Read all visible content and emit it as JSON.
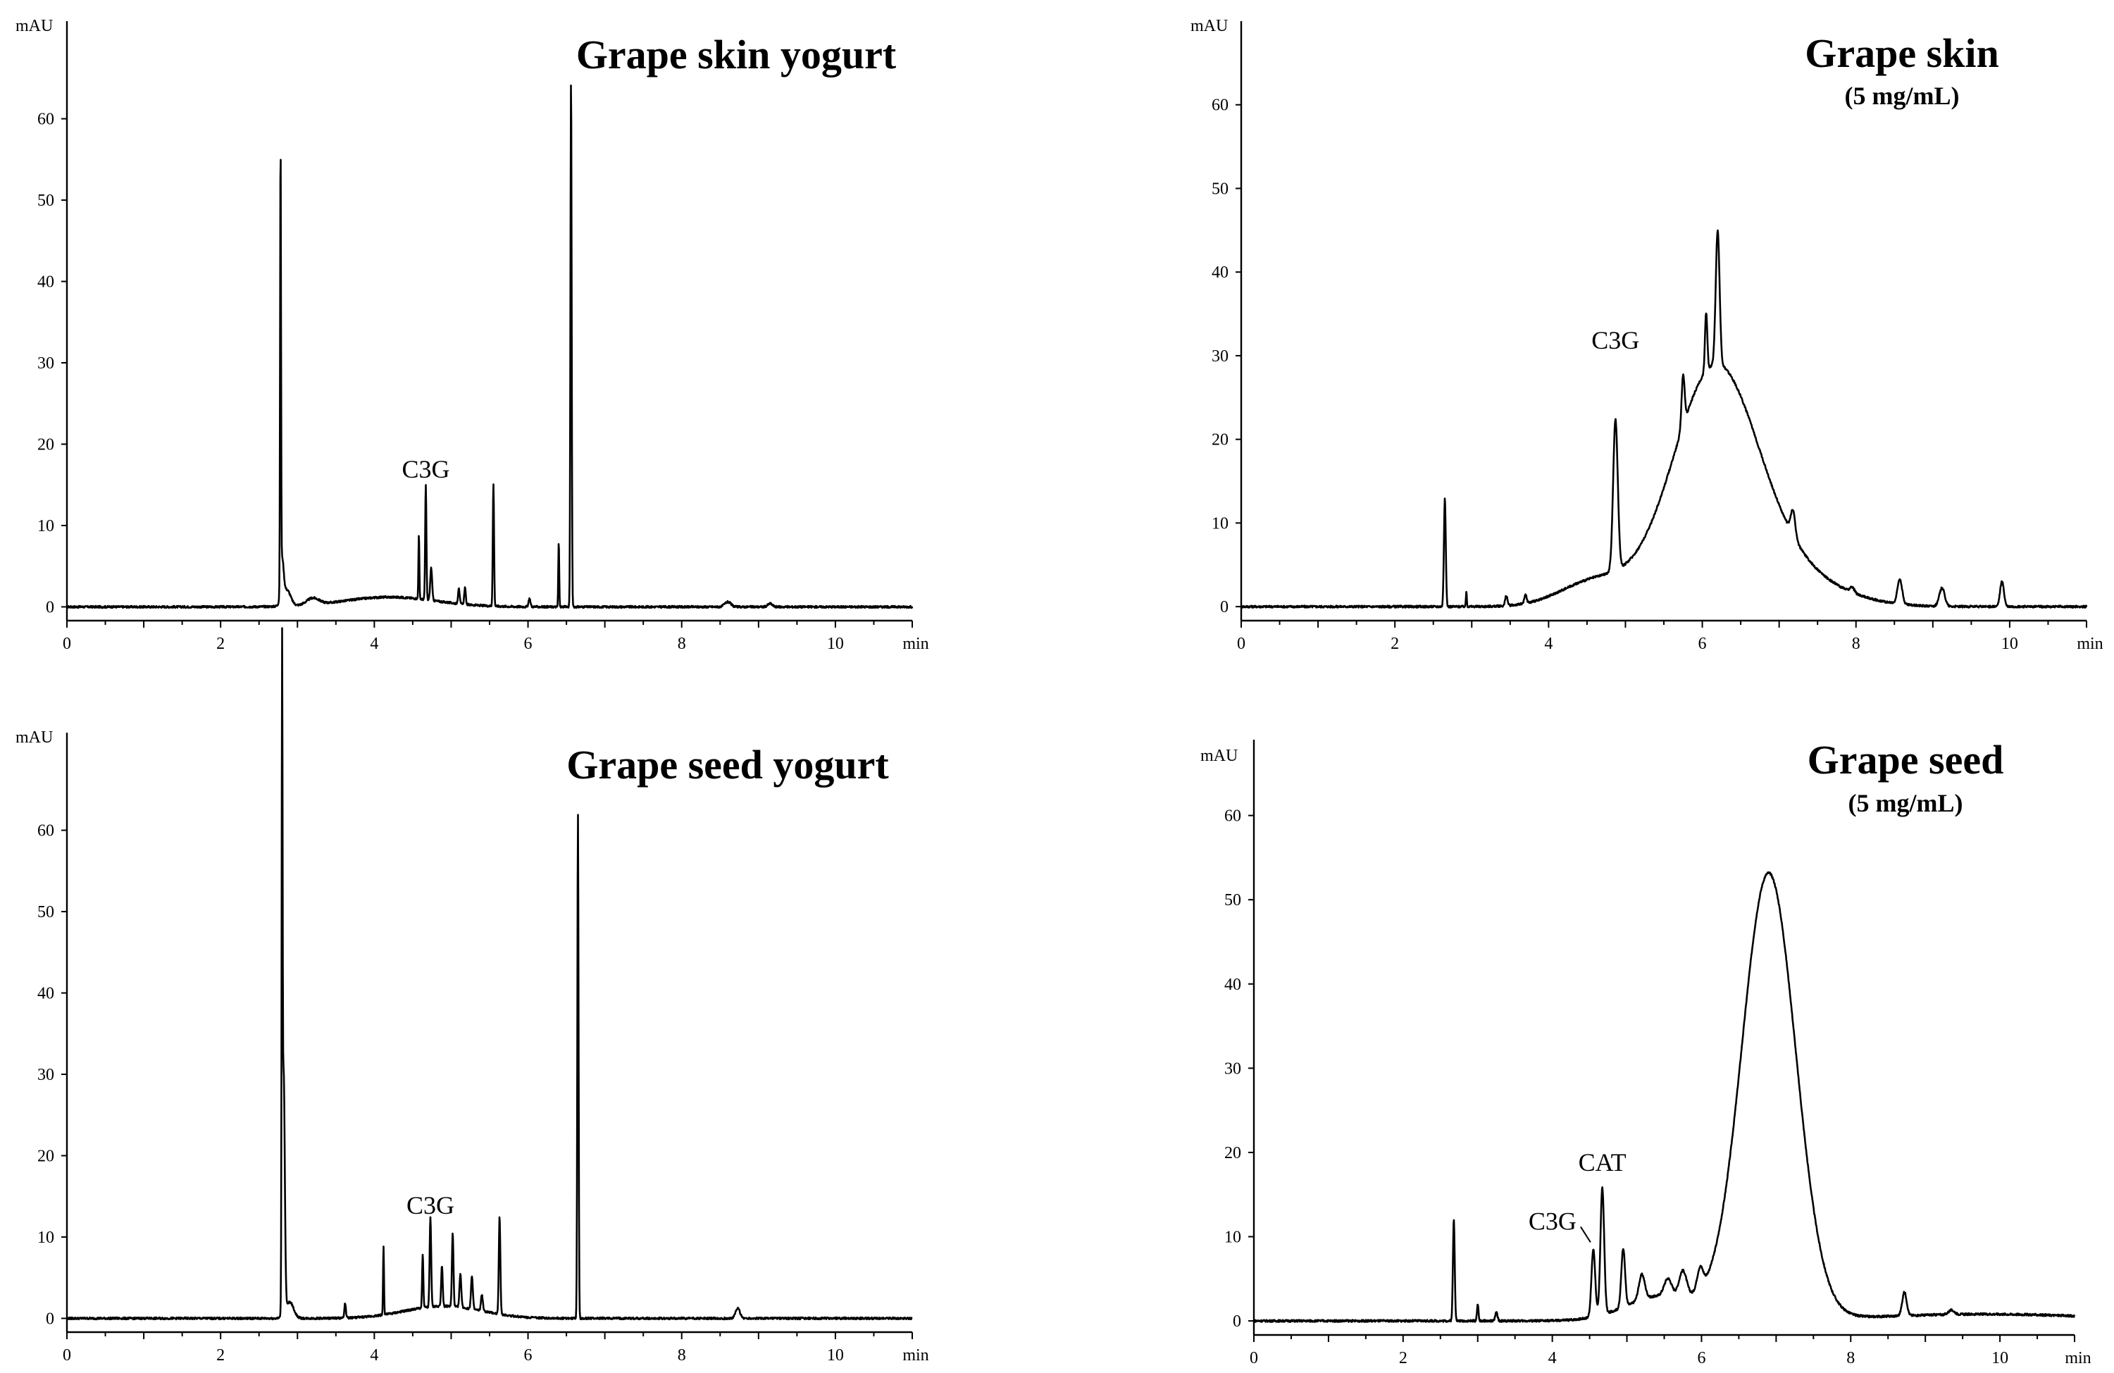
{
  "chart_data": [
    {
      "type": "line",
      "title": "Grape skin yogurt",
      "subtitle": "",
      "xunit": "min",
      "yunit": "mAU",
      "xlim": [
        0,
        11
      ],
      "ylim": [
        -1,
        72
      ],
      "xticks": [
        0,
        2,
        4,
        6,
        8,
        10
      ],
      "yticks": [
        0,
        10,
        20,
        30,
        40,
        50,
        60
      ],
      "baseline": 0,
      "peaks": [
        {
          "x": 2.78,
          "h": 54,
          "w": 0.006
        },
        {
          "x": 2.8,
          "h": 5,
          "w": 0.02
        },
        {
          "x": 2.86,
          "h": 2,
          "w": 0.05
        },
        {
          "x": 3.2,
          "h": 0.8,
          "w": 0.08
        },
        {
          "x": 4.58,
          "h": 8,
          "w": 0.006
        },
        {
          "x": 4.67,
          "h": 14,
          "w": 0.008
        },
        {
          "x": 4.74,
          "h": 4,
          "w": 0.012
        },
        {
          "x": 5.1,
          "h": 2,
          "w": 0.01
        },
        {
          "x": 5.18,
          "h": 2,
          "w": 0.01
        },
        {
          "x": 5.55,
          "h": 15,
          "w": 0.008
        },
        {
          "x": 6.02,
          "h": 1,
          "w": 0.012
        },
        {
          "x": 6.4,
          "h": 8,
          "w": 0.006
        },
        {
          "x": 6.56,
          "h": 65,
          "w": 0.008
        },
        {
          "x": 8.6,
          "h": 0.6,
          "w": 0.04
        },
        {
          "x": 9.15,
          "h": 0.4,
          "w": 0.03
        }
      ],
      "humps": [
        {
          "x": 4.2,
          "h": 1.2,
          "w": 0.6
        }
      ],
      "annotations": [
        {
          "text": "C3G",
          "x": 4.67,
          "y": 15
        }
      ]
    },
    {
      "type": "line",
      "title": "Grape skin",
      "subtitle": "(5 mg/mL)",
      "xunit": "min",
      "yunit": "mAU",
      "xlim": [
        0,
        11
      ],
      "ylim": [
        -1,
        70
      ],
      "xticks": [
        0,
        2,
        4,
        6,
        8,
        10
      ],
      "yticks": [
        0,
        10,
        20,
        30,
        40,
        50,
        60
      ],
      "baseline": 0,
      "peaks": [
        {
          "x": 2.65,
          "h": 13,
          "w": 0.012
        },
        {
          "x": 2.93,
          "h": 1.8,
          "w": 0.006
        },
        {
          "x": 3.45,
          "h": 1.2,
          "w": 0.015
        },
        {
          "x": 3.7,
          "h": 1,
          "w": 0.015
        },
        {
          "x": 4.87,
          "h": 18,
          "w": 0.03
        },
        {
          "x": 5.75,
          "h": 6,
          "w": 0.02
        },
        {
          "x": 6.05,
          "h": 7,
          "w": 0.015
        },
        {
          "x": 6.2,
          "h": 16,
          "w": 0.025
        },
        {
          "x": 7.18,
          "h": 3,
          "w": 0.03
        },
        {
          "x": 7.95,
          "h": 0.6,
          "w": 0.03
        },
        {
          "x": 8.57,
          "h": 3,
          "w": 0.03
        },
        {
          "x": 9.12,
          "h": 2.2,
          "w": 0.035
        },
        {
          "x": 9.9,
          "h": 3,
          "w": 0.025
        }
      ],
      "humps": [
        {
          "x": 6.15,
          "h": 27,
          "w": 0.55
        },
        {
          "x": 4.6,
          "h": 3,
          "w": 0.45
        },
        {
          "x": 7.0,
          "h": 4,
          "w": 0.7
        }
      ],
      "annotations": [
        {
          "text": "C3G",
          "x": 4.87,
          "y": 30
        }
      ]
    },
    {
      "type": "line",
      "title": "Grape seed yogurt",
      "subtitle": "",
      "xunit": "min",
      "yunit": "mAU",
      "xlim": [
        0,
        11
      ],
      "ylim": [
        -1,
        72
      ],
      "xticks": [
        0,
        2,
        4,
        6,
        8,
        10
      ],
      "yticks": [
        0,
        10,
        20,
        30,
        40,
        50,
        60
      ],
      "baseline": 0,
      "peaks": [
        {
          "x": 2.8,
          "h": 72,
          "w": 0.006
        },
        {
          "x": 2.82,
          "h": 30,
          "w": 0.015
        },
        {
          "x": 2.9,
          "h": 2,
          "w": 0.05
        },
        {
          "x": 3.62,
          "h": 1.8,
          "w": 0.01
        },
        {
          "x": 4.12,
          "h": 8.5,
          "w": 0.006
        },
        {
          "x": 4.63,
          "h": 6.5,
          "w": 0.008
        },
        {
          "x": 4.73,
          "h": 11,
          "w": 0.01
        },
        {
          "x": 4.88,
          "h": 5,
          "w": 0.01
        },
        {
          "x": 5.02,
          "h": 9,
          "w": 0.01
        },
        {
          "x": 5.12,
          "h": 4,
          "w": 0.012
        },
        {
          "x": 5.27,
          "h": 4,
          "w": 0.012
        },
        {
          "x": 5.4,
          "h": 2,
          "w": 0.012
        },
        {
          "x": 5.63,
          "h": 12,
          "w": 0.01
        },
        {
          "x": 6.65,
          "h": 62,
          "w": 0.008
        },
        {
          "x": 8.73,
          "h": 1.2,
          "w": 0.03
        }
      ],
      "humps": [
        {
          "x": 4.9,
          "h": 1.5,
          "w": 0.5
        }
      ],
      "annotations": [
        {
          "text": "C3G",
          "x": 4.73,
          "y": 12
        }
      ]
    },
    {
      "type": "line",
      "title": "Grape seed",
      "subtitle": "(5 mg/mL)",
      "xunit": "min",
      "yunit": "mAU",
      "xlim": [
        0,
        11
      ],
      "ylim": [
        -1,
        69
      ],
      "xticks": [
        0,
        2,
        4,
        6,
        8,
        10
      ],
      "yticks": [
        0,
        10,
        20,
        30,
        40,
        50,
        60
      ],
      "baseline": 0,
      "peaks": [
        {
          "x": 2.68,
          "h": 12,
          "w": 0.012
        },
        {
          "x": 3.0,
          "h": 2,
          "w": 0.01
        },
        {
          "x": 3.25,
          "h": 1,
          "w": 0.015
        },
        {
          "x": 4.55,
          "h": 8,
          "w": 0.025
        },
        {
          "x": 4.67,
          "h": 15,
          "w": 0.025
        },
        {
          "x": 4.95,
          "h": 7,
          "w": 0.025
        },
        {
          "x": 5.2,
          "h": 3,
          "w": 0.04
        },
        {
          "x": 5.55,
          "h": 2,
          "w": 0.05
        },
        {
          "x": 5.75,
          "h": 3,
          "w": 0.05
        },
        {
          "x": 5.98,
          "h": 2.5,
          "w": 0.04
        },
        {
          "x": 8.72,
          "h": 2.8,
          "w": 0.03
        },
        {
          "x": 9.35,
          "h": 0.5,
          "w": 0.04
        }
      ],
      "humps": [
        {
          "x": 6.9,
          "h": 53,
          "w": 0.36
        },
        {
          "x": 5.5,
          "h": 3,
          "w": 0.5
        },
        {
          "x": 9.8,
          "h": 0.8,
          "w": 1.5
        }
      ],
      "annotations": [
        {
          "text": "CAT",
          "x": 4.67,
          "y": 17
        },
        {
          "text": "C3G",
          "x": 4.55,
          "y": 9
        }
      ]
    }
  ]
}
